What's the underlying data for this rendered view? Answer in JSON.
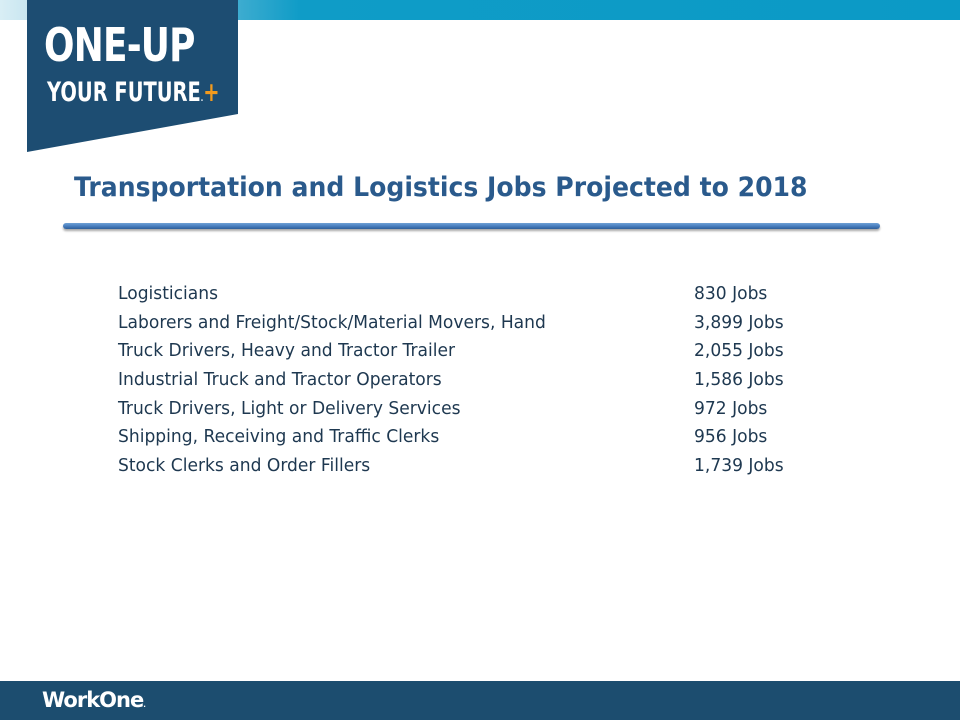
{
  "brand": {
    "logo_line1": "ONE-UP",
    "logo_line2": "YOUR FUTURE",
    "logo_trademark": ".",
    "logo_plus": "+",
    "accent_color": "#f29a1d",
    "badge_color": "#1d4d72",
    "top_bar_color": "#0b9ac6"
  },
  "slide": {
    "title": "Transportation and Logistics Jobs Projected to 2018",
    "title_color": "#2a5a8c"
  },
  "jobs": [
    {
      "title": "Logisticians",
      "count": "830 Jobs"
    },
    {
      "title": "Laborers and Freight/Stock/Material Movers, Hand",
      "count": "3,899 Jobs"
    },
    {
      "title": "Truck Drivers, Heavy and Tractor Trailer",
      "count": "2,055 Jobs"
    },
    {
      "title": "Industrial Truck and Tractor Operators",
      "count": "1,586 Jobs"
    },
    {
      "title": "Truck Drivers, Light or Delivery Services",
      "count": "972 Jobs"
    },
    {
      "title": "Shipping, Receiving and Traffic Clerks",
      "count": "956 Jobs"
    },
    {
      "title": "Stock Clerks and Order Fillers",
      "count": "1,739 Jobs"
    }
  ],
  "footer": {
    "logo_text": "WorkOne",
    "logo_mark": ".",
    "bar_color": "#1c4d6f"
  }
}
